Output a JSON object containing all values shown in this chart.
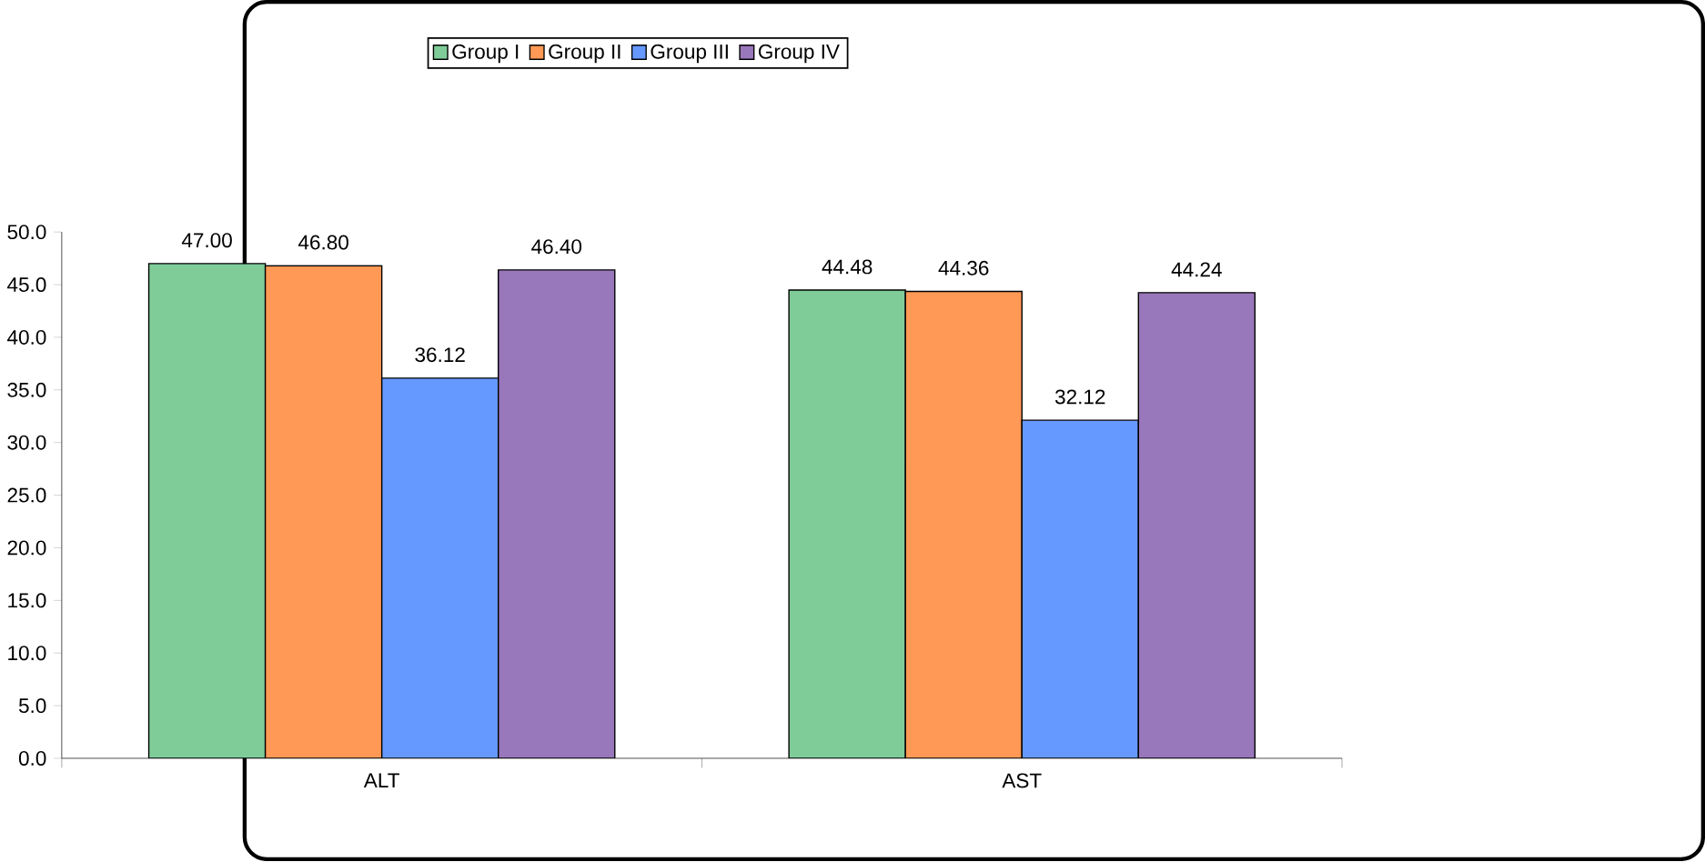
{
  "chart_data": {
    "type": "bar",
    "categories": [
      "ALT",
      "AST"
    ],
    "series": [
      {
        "name": "Group I",
        "color": "#7fcc99",
        "values": [
          47.0,
          44.48
        ],
        "value_labels": [
          "47.00",
          "44.48"
        ]
      },
      {
        "name": "Group II",
        "color": "#ff9955",
        "values": [
          46.8,
          44.36
        ],
        "value_labels": [
          "46.80",
          "44.36"
        ]
      },
      {
        "name": "Group III",
        "color": "#6699ff",
        "values": [
          36.12,
          32.12
        ],
        "value_labels": [
          "36.12",
          "32.12"
        ]
      },
      {
        "name": "Group IV",
        "color": "#9977bb",
        "values": [
          46.4,
          44.24
        ],
        "value_labels": [
          "46.40",
          "44.24"
        ]
      }
    ],
    "ylim": [
      0,
      50
    ],
    "yticks": [
      {
        "value": 0,
        "label": "0.0"
      },
      {
        "value": 5,
        "label": "5.0"
      },
      {
        "value": 10,
        "label": "10.0"
      },
      {
        "value": 15,
        "label": "15.0"
      },
      {
        "value": 20,
        "label": "20.0"
      },
      {
        "value": 25,
        "label": "25.0"
      },
      {
        "value": 30,
        "label": "30.0"
      },
      {
        "value": 35,
        "label": "35.0"
      },
      {
        "value": 40,
        "label": "40.0"
      },
      {
        "value": 45,
        "label": "45.0"
      },
      {
        "value": 50,
        "label": "50.0"
      }
    ],
    "grid": false,
    "legend": "top"
  }
}
